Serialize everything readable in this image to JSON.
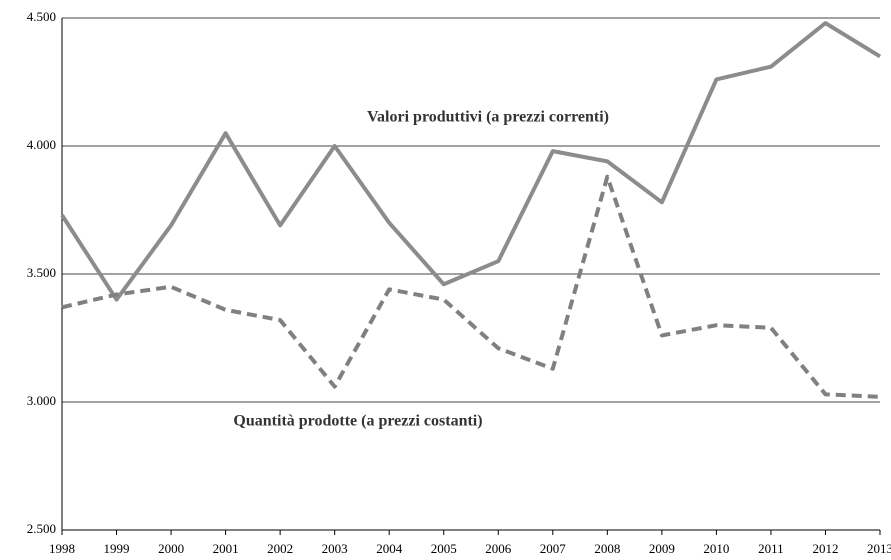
{
  "chart_data": {
    "type": "line",
    "categories": [
      "1998",
      "1999",
      "2000",
      "2001",
      "2002",
      "2003",
      "2004",
      "2005",
      "2006",
      "2007",
      "2008",
      "2009",
      "2010",
      "2011",
      "2012",
      "2013"
    ],
    "series": [
      {
        "name": "Valori produttivi (a prezzi correnti)",
        "color": "#8c8c8c",
        "dash": false,
        "values": [
          3730,
          3400,
          3690,
          4050,
          3690,
          4000,
          3700,
          3460,
          3550,
          3980,
          3940,
          3780,
          4260,
          4310,
          4480,
          4350
        ]
      },
      {
        "name": "Quantità prodotte (a prezzi costanti)",
        "color": "#808080",
        "dash": true,
        "values": [
          3370,
          3420,
          3450,
          3360,
          3320,
          3060,
          3440,
          3400,
          3210,
          3130,
          3880,
          3260,
          3300,
          3290,
          3030,
          3020
        ]
      }
    ],
    "ylim": [
      2500,
      4500
    ],
    "yticks": [
      {
        "value": 2500,
        "label": "2.500"
      },
      {
        "value": 3000,
        "label": "3.000"
      },
      {
        "value": 3500,
        "label": "3.500"
      },
      {
        "value": 4000,
        "label": "4.000"
      },
      {
        "value": 4500,
        "label": "4.500"
      }
    ],
    "grid": true
  }
}
